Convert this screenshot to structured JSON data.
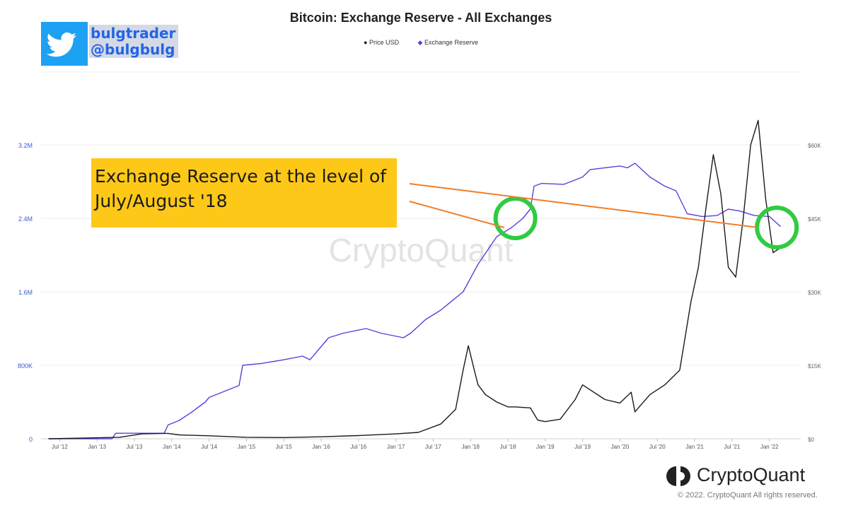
{
  "twitter": {
    "handle_name": "bulgtrader",
    "handle_at": "@bulgbulg"
  },
  "annotation": {
    "text": "Exchange Reserve at the level of\nJuly/August '18",
    "color": "#fdc818"
  },
  "watermark": "CryptoQuant",
  "footer": {
    "brand": "CryptoQuant",
    "copyright": "© 2022. CryptoQuant All rights reserved."
  },
  "chart_data": {
    "type": "line",
    "title": "Bitcoin: Exchange Reserve - All Exchanges",
    "legend": [
      "Price USD",
      "Exchange Reserve"
    ],
    "legend_position": "top-center",
    "grid": true,
    "x_ticks": [
      "Jul '12",
      "Jan '13",
      "Jul '13",
      "Jan '14",
      "Jul '14",
      "Jan '15",
      "Jul '15",
      "Jan '16",
      "Jul '16",
      "Jan '17",
      "Jul '17",
      "Jan '18",
      "Jul '18",
      "Jan '19",
      "Jul '19",
      "Jan '20",
      "Jul '20",
      "Jan '21",
      "Jul '21",
      "Jan '22"
    ],
    "y_left": {
      "ticks": [
        0,
        800000,
        1600000,
        2400000,
        3200000
      ],
      "tick_labels": [
        "0",
        "800K",
        "1.6M",
        "2.4M",
        "3.2M"
      ],
      "ylim": [
        0,
        3200000
      ]
    },
    "y_right": {
      "ticks": [
        0,
        15000,
        30000,
        45000,
        60000
      ],
      "tick_labels": [
        "$0",
        "$15K",
        "$30K",
        "$45K",
        "$60K"
      ],
      "ylim": [
        0,
        60000
      ]
    },
    "series": [
      {
        "name": "Exchange Reserve",
        "axis": "left",
        "color": "#5b3fd9",
        "x": [
          2012.35,
          2013.2,
          2013.25,
          2013.9,
          2013.95,
          2014.1,
          2014.25,
          2014.45,
          2014.5,
          2014.9,
          2014.95,
          2015.2,
          2015.5,
          2015.75,
          2015.85,
          2016.1,
          2016.3,
          2016.6,
          2016.8,
          2017.1,
          2017.2,
          2017.4,
          2017.6,
          2017.9,
          2018.1,
          2018.35,
          2018.55,
          2018.7,
          2018.8,
          2018.85,
          2018.95,
          2019.25,
          2019.5,
          2019.6,
          2020.0,
          2020.1,
          2020.2,
          2020.4,
          2020.6,
          2020.75,
          2020.9,
          2021.1,
          2021.3,
          2021.45,
          2021.6,
          2021.8,
          2022.0,
          2022.15
        ],
        "values": [
          0,
          0,
          60000,
          60000,
          150000,
          200000,
          280000,
          400000,
          450000,
          580000,
          800000,
          820000,
          860000,
          900000,
          860000,
          1100000,
          1150000,
          1200000,
          1150000,
          1100000,
          1150000,
          1300000,
          1400000,
          1600000,
          1900000,
          2200000,
          2300000,
          2400000,
          2500000,
          2750000,
          2780000,
          2770000,
          2850000,
          2930000,
          2970000,
          2950000,
          3000000,
          2850000,
          2750000,
          2700000,
          2450000,
          2420000,
          2430000,
          2500000,
          2480000,
          2430000,
          2420000,
          2310000
        ]
      },
      {
        "name": "Price USD",
        "axis": "right",
        "color": "#1a1a1a",
        "x": [
          2012.35,
          2013.0,
          2013.3,
          2013.6,
          2013.9,
          2013.95,
          2014.1,
          2014.5,
          2015.0,
          2015.5,
          2016.0,
          2016.5,
          2017.0,
          2017.3,
          2017.6,
          2017.8,
          2017.9,
          2017.97,
          2018.05,
          2018.1,
          2018.2,
          2018.35,
          2018.5,
          2018.6,
          2018.8,
          2018.9,
          2019.0,
          2019.2,
          2019.4,
          2019.5,
          2019.6,
          2019.8,
          2020.0,
          2020.15,
          2020.2,
          2020.4,
          2020.6,
          2020.8,
          2020.95,
          2021.05,
          2021.15,
          2021.25,
          2021.35,
          2021.45,
          2021.55,
          2021.65,
          2021.75,
          2021.85,
          2021.95,
          2022.05,
          2022.15
        ],
        "values": [
          0,
          200,
          300,
          1000,
          1100,
          1100,
          800,
          600,
          300,
          250,
          400,
          650,
          1000,
          1300,
          3000,
          6000,
          14000,
          19000,
          14000,
          11000,
          9000,
          7500,
          6500,
          6500,
          6300,
          3800,
          3500,
          4000,
          8000,
          11000,
          10000,
          8000,
          7300,
          9500,
          5500,
          9000,
          11000,
          14000,
          28000,
          35000,
          47000,
          58000,
          50000,
          35000,
          33000,
          45000,
          60000,
          65000,
          49000,
          38000,
          39000
        ]
      }
    ],
    "annotations": [
      {
        "type": "circle",
        "at_x": 2018.6,
        "at_y_left": 2400000,
        "color": "#2ecc40"
      },
      {
        "type": "circle",
        "at_x": 2022.1,
        "at_y_left": 2300000,
        "color": "#2ecc40"
      },
      {
        "type": "arrow-line",
        "from": "annotation-box",
        "to_x": 2021.85,
        "to_y_left": 2300000,
        "color": "#f37b2a"
      },
      {
        "type": "arrow-line",
        "from": "annotation-box",
        "to_x": 2018.45,
        "to_y_left": 2300000,
        "color": "#f37b2a"
      }
    ]
  }
}
